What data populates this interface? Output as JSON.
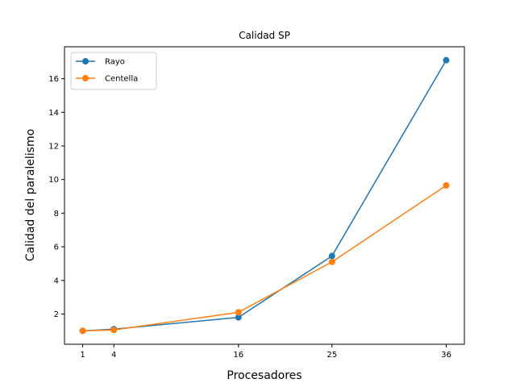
{
  "chart_data": {
    "type": "line",
    "title": "Calidad SP",
    "xlabel": "Procesadores",
    "ylabel": "Calidad del paralelismo",
    "x": [
      1,
      4,
      16,
      25,
      36
    ],
    "xticks": [
      1,
      4,
      16,
      25,
      36
    ],
    "yticks": [
      2,
      4,
      6,
      8,
      10,
      12,
      14,
      16
    ],
    "xlim": [
      -0.75,
      37.75
    ],
    "ylim": [
      0.2,
      17.9
    ],
    "grid": false,
    "legend_position": "top-left",
    "series": [
      {
        "name": "Rayo",
        "color": "#1f77b4",
        "values": [
          1.0,
          1.1,
          1.8,
          5.45,
          17.1
        ]
      },
      {
        "name": "Centella",
        "color": "#ff7f0e",
        "values": [
          1.0,
          1.05,
          2.1,
          5.1,
          9.65
        ]
      }
    ]
  }
}
